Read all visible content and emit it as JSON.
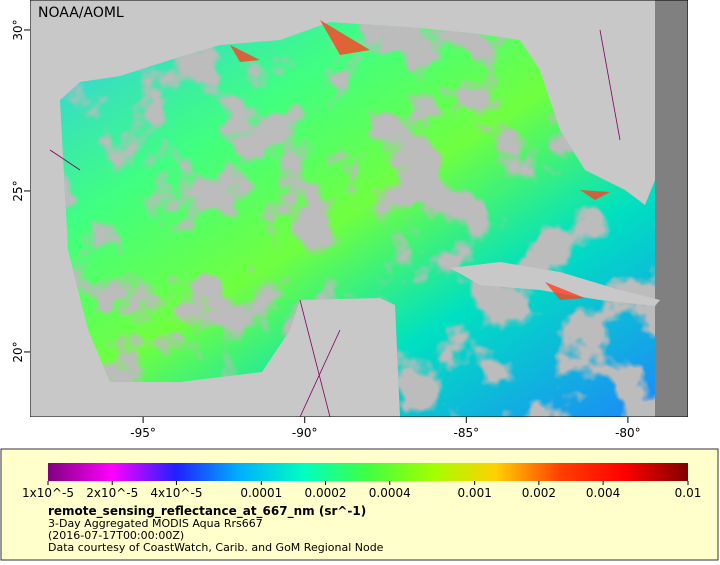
{
  "map": {
    "watermark": "NOAA/AOML",
    "xlim": [
      -98.5,
      -78.14
    ],
    "ylim": [
      17.98,
      30.93
    ],
    "xticks": [
      {
        "value": -95,
        "label": "-95°"
      },
      {
        "value": -90,
        "label": "-90°"
      },
      {
        "value": -85,
        "label": "-85°"
      },
      {
        "value": -80,
        "label": "-80°"
      }
    ],
    "yticks": [
      {
        "value": 20,
        "label": "20°"
      },
      {
        "value": 25,
        "label": "25°"
      },
      {
        "value": 30,
        "label": "30°"
      }
    ]
  },
  "colorbar": {
    "scale": "log",
    "lim": [
      1e-05,
      0.01
    ],
    "ticks": [
      {
        "value": 1e-05,
        "label": "1x10^-5"
      },
      {
        "value": 2e-05,
        "label": "2x10^-5"
      },
      {
        "value": 4e-05,
        "label": "4x10^-5"
      },
      0.0001,
      0.0002,
      0.0004,
      0.001,
      0.002,
      0.004,
      0.01
    ],
    "colors": [
      "#800080",
      "#ff00ff",
      "#2020ff",
      "#00b0ff",
      "#00ffc0",
      "#40ff40",
      "#a0ff00",
      "#ffd000",
      "#ff4000",
      "#ff0000",
      "#800000"
    ]
  },
  "legend": {
    "title": "remote_sensing_reflectance_at_667_nm (sr^-1)",
    "lines": [
      "3-Day Aggregated MODIS Aqua Rrs667",
      "(2016-07-17T00:00:00Z)",
      "Data courtesy of CoastWatch, Carib. and GoM Regional Node"
    ]
  }
}
